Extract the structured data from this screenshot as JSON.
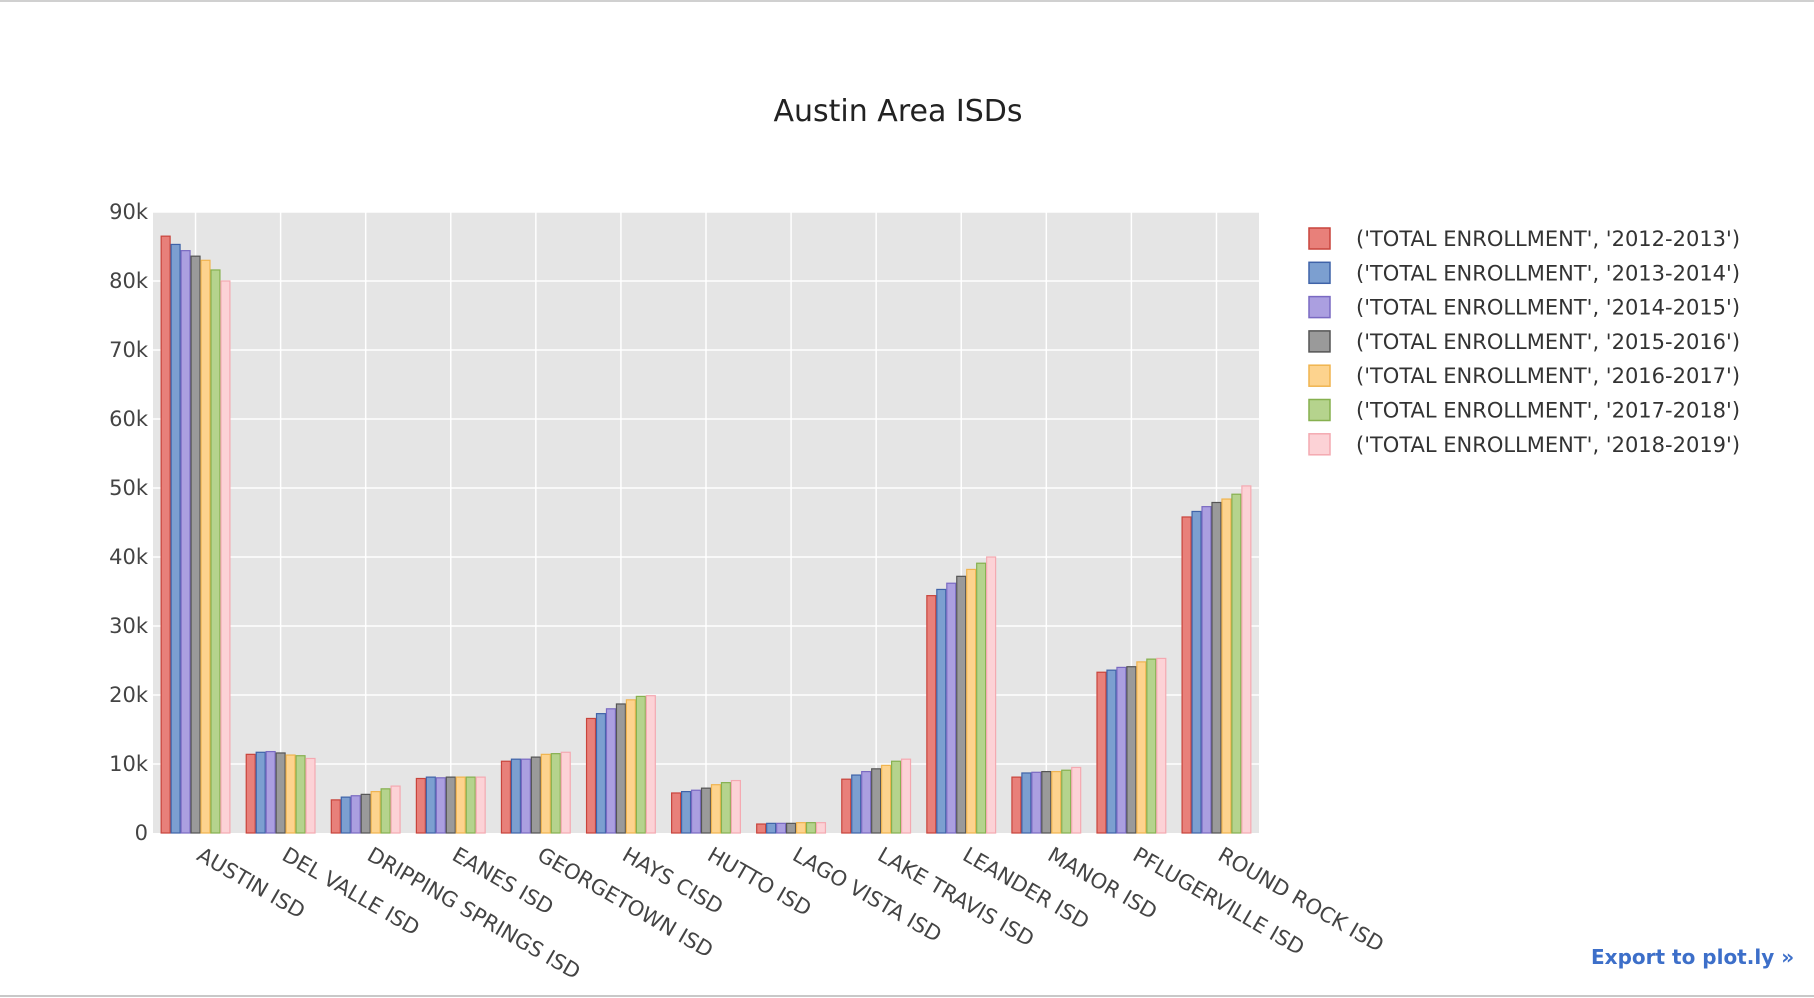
{
  "export_label": "Export to plot.ly »",
  "chart_data": {
    "type": "bar",
    "title": "Austin Area ISDs",
    "xlabel": "",
    "ylabel": "",
    "ylim": [
      0,
      90000
    ],
    "yticks": [
      0,
      10000,
      20000,
      30000,
      40000,
      50000,
      60000,
      70000,
      80000,
      90000
    ],
    "ytick_labels": [
      "0",
      "10k",
      "20k",
      "30k",
      "40k",
      "50k",
      "60k",
      "70k",
      "80k",
      "90k"
    ],
    "grid": true,
    "legend_position": "right",
    "categories": [
      "AUSTIN ISD",
      "DEL VALLE ISD",
      "DRIPPING SPRINGS ISD",
      "EANES ISD",
      "GEORGETOWN ISD",
      "HAYS CISD",
      "HUTTO ISD",
      "LAGO VISTA ISD",
      "LAKE TRAVIS ISD",
      "LEANDER ISD",
      "MANOR ISD",
      "PFLUGERVILLE ISD",
      "ROUND ROCK ISD"
    ],
    "series": [
      {
        "name": "('TOTAL ENROLLMENT', '2012-2013')",
        "color": "#e8807a",
        "stroke": "#c8443c",
        "values": [
          86500,
          11400,
          4800,
          7900,
          10400,
          16600,
          5800,
          1300,
          7800,
          34400,
          8100,
          23300,
          45800
        ]
      },
      {
        "name": "('TOTAL ENROLLMENT', '2013-2014')",
        "color": "#7c9fd0",
        "stroke": "#3f63a8",
        "values": [
          85300,
          11700,
          5200,
          8100,
          10700,
          17300,
          6000,
          1400,
          8400,
          35300,
          8700,
          23600,
          46600
        ]
      },
      {
        "name": "('TOTAL ENROLLMENT', '2014-2015')",
        "color": "#ab9fe0",
        "stroke": "#7a6ac2",
        "values": [
          84400,
          11800,
          5400,
          8000,
          10700,
          18000,
          6200,
          1400,
          8900,
          36200,
          8800,
          24000,
          47300
        ]
      },
      {
        "name": "('TOTAL ENROLLMENT', '2015-2016')",
        "color": "#9a9a9a",
        "stroke": "#555555",
        "values": [
          83600,
          11600,
          5600,
          8100,
          11000,
          18700,
          6500,
          1400,
          9300,
          37200,
          8900,
          24100,
          47900
        ]
      },
      {
        "name": "('TOTAL ENROLLMENT', '2016-2017')",
        "color": "#fdd38e",
        "stroke": "#f0b44f",
        "values": [
          83000,
          11300,
          6000,
          8100,
          11400,
          19300,
          7000,
          1500,
          9800,
          38200,
          8900,
          24800,
          48400
        ]
      },
      {
        "name": "('TOTAL ENROLLMENT', '2017-2018')",
        "color": "#b5d38d",
        "stroke": "#86b04f",
        "values": [
          81600,
          11200,
          6400,
          8100,
          11500,
          19800,
          7300,
          1500,
          10400,
          39100,
          9100,
          25200,
          49100
        ]
      },
      {
        "name": "('TOTAL ENROLLMENT', '2018-2019')",
        "color": "#fcd2d6",
        "stroke": "#f4a9b1",
        "values": [
          80000,
          10800,
          6800,
          8100,
          11700,
          19900,
          7600,
          1500,
          10700,
          40000,
          9500,
          25300,
          50300
        ]
      }
    ]
  }
}
